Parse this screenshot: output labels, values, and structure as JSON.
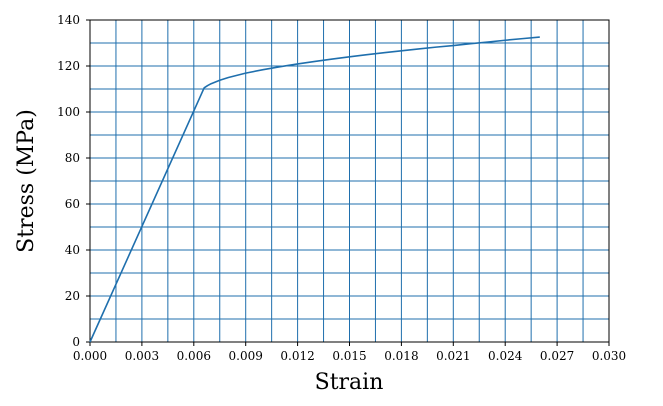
{
  "chart_data": {
    "type": "line",
    "title": "",
    "xlabel": "Strain",
    "ylabel": "Stress (MPa)",
    "xlim": [
      0,
      0.03
    ],
    "ylim": [
      0,
      140
    ],
    "grid": true,
    "x_major_ticks": [
      "0.000",
      "0.003",
      "0.006",
      "0.009",
      "0.012",
      "0.015",
      "0.018",
      "0.021",
      "0.024",
      "0.027",
      "0.030"
    ],
    "y_major_ticks": [
      "0",
      "20",
      "40",
      "60",
      "80",
      "100",
      "120",
      "140"
    ],
    "x_minor_step": 0.0015,
    "y_minor_step": 10,
    "colors": {
      "grid": "#1f6fad",
      "line": "#1f6fad",
      "axis": "#000000"
    },
    "series": [
      {
        "x": [
          0.0,
          0.0066,
          0.0068,
          0.007,
          0.0075,
          0.008,
          0.009,
          0.01,
          0.011,
          0.012,
          0.013,
          0.014,
          0.015,
          0.016,
          0.017,
          0.018,
          0.019,
          0.02,
          0.021,
          0.022,
          0.023,
          0.024,
          0.025,
          0.026
        ],
        "y": [
          0,
          110.5,
          111.5,
          112.3,
          113.8,
          115.0,
          116.9,
          118.4,
          119.7,
          120.9,
          122.0,
          123.0,
          124.0,
          124.9,
          125.8,
          126.6,
          127.4,
          128.2,
          128.9,
          129.7,
          130.4,
          131.2,
          131.9,
          132.6
        ]
      }
    ]
  }
}
